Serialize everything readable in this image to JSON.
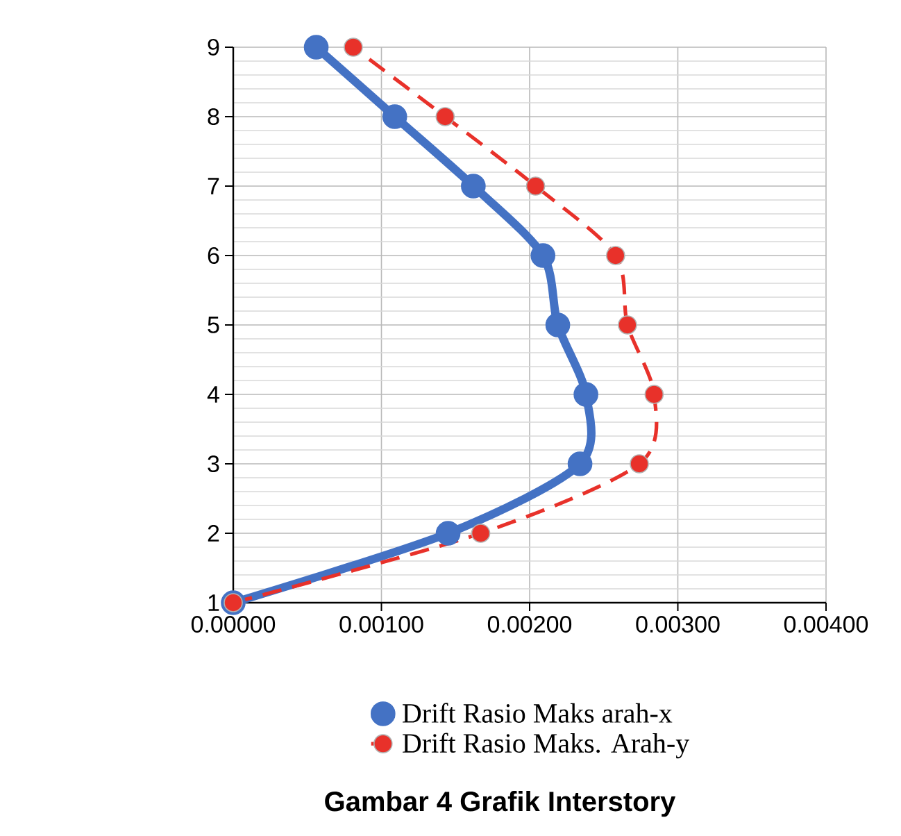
{
  "chart_data": {
    "type": "line",
    "annotations": [
      "Gambar 4 Grafik Interstory"
    ],
    "xlim": [
      0,
      0.004
    ],
    "xticks": [
      {
        "value": 0,
        "label": "0.00000"
      },
      {
        "value": 0.001,
        "label": "0.00100"
      },
      {
        "value": 0.002,
        "label": "0.00200"
      },
      {
        "value": 0.003,
        "label": "0.00300"
      },
      {
        "value": 0.004,
        "label": "0.00400"
      }
    ],
    "ylim": [
      1,
      9
    ],
    "yticks": [
      1,
      2,
      3,
      4,
      5,
      6,
      7,
      8,
      9
    ],
    "grid": true,
    "legend": "bottom",
    "marker": "circle",
    "series": [
      {
        "name": "Drift Rasio Maks arah-x",
        "color": "#4472c4",
        "line_style": "solid",
        "x": [
          0,
          0.00145,
          0.00234,
          0.00238,
          0.00219,
          0.00209,
          0.00162,
          0.00109,
          0.00056
        ],
        "values": [
          1,
          2,
          3,
          4,
          5,
          6,
          7,
          8,
          9
        ]
      },
      {
        "name": "Drift Rasio Maks. Arah-y",
        "color": "#e8312a",
        "line_style": "dashed",
        "x": [
          0,
          0.00167,
          0.00274,
          0.00284,
          0.00266,
          0.00258,
          0.00204,
          0.00143,
          0.00081
        ],
        "values": [
          1,
          2,
          3,
          4,
          5,
          6,
          7,
          8,
          9
        ]
      }
    ]
  }
}
